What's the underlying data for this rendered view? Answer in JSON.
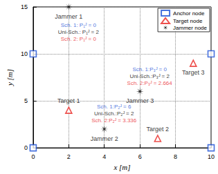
{
  "chart_data": {
    "type": "scatter",
    "xlabel": "x [m]",
    "ylabel": "y [m]",
    "xlim": [
      0,
      10
    ],
    "ylim": [
      0,
      15
    ],
    "xticks": [
      0,
      2,
      4,
      6,
      8,
      10
    ],
    "yticks": [
      0,
      5,
      10,
      15
    ],
    "grid": true,
    "legend": "upper right",
    "series": [
      {
        "name": "Anchor node",
        "color": "#1a4fd6",
        "marker": "square",
        "x": [
          0,
          0,
          10,
          10
        ],
        "y": [
          0,
          10,
          0,
          10
        ]
      },
      {
        "name": "Target node",
        "color": "#e8231f",
        "marker": "triangle",
        "x": [
          2,
          7,
          9
        ],
        "y": [
          4,
          1,
          9
        ],
        "labels": [
          "Target 1",
          "Target 2",
          "Target 3"
        ]
      },
      {
        "name": "Jammer node",
        "color": "#000000",
        "marker": "asterisk",
        "x": [
          2,
          4,
          6
        ],
        "y": [
          15,
          2,
          6
        ],
        "labels": [
          "Jammer 1",
          "Jammer 2",
          "Jammer 3"
        ]
      }
    ],
    "annotations": [
      {
        "attached_to": "Jammer 1",
        "lines": [
          {
            "text": "Sch. 1: P₁ᴶ = 0",
            "color": "#1a4fd6"
          },
          {
            "text": "Uni-Sch.: P₁ᴶ = 2",
            "color": "#000000"
          },
          {
            "text": "Sch. 2: P₁ᴶ = 0",
            "color": "#e8231f"
          }
        ]
      },
      {
        "attached_to": "Jammer 2",
        "lines": [
          {
            "text": "Sch. 1:P₂ᴶ = 6",
            "color": "#1a4fd6"
          },
          {
            "text": "Uni-Sch.:P₂ᴶ = 2",
            "color": "#000000"
          },
          {
            "text": "Sch. 2:P₂ᴶ = 3.336",
            "color": "#e8231f"
          }
        ]
      },
      {
        "attached_to": "Jammer 3",
        "lines": [
          {
            "text": "Sch. 1:P₃ᴶ = 0",
            "color": "#1a4fd6"
          },
          {
            "text": "Uni-Sch.:P₃ᴶ = 2",
            "color": "#000000"
          },
          {
            "text": "Sch. 2:P₃ᴶ = 2.664",
            "color": "#e8231f"
          }
        ]
      }
    ]
  }
}
